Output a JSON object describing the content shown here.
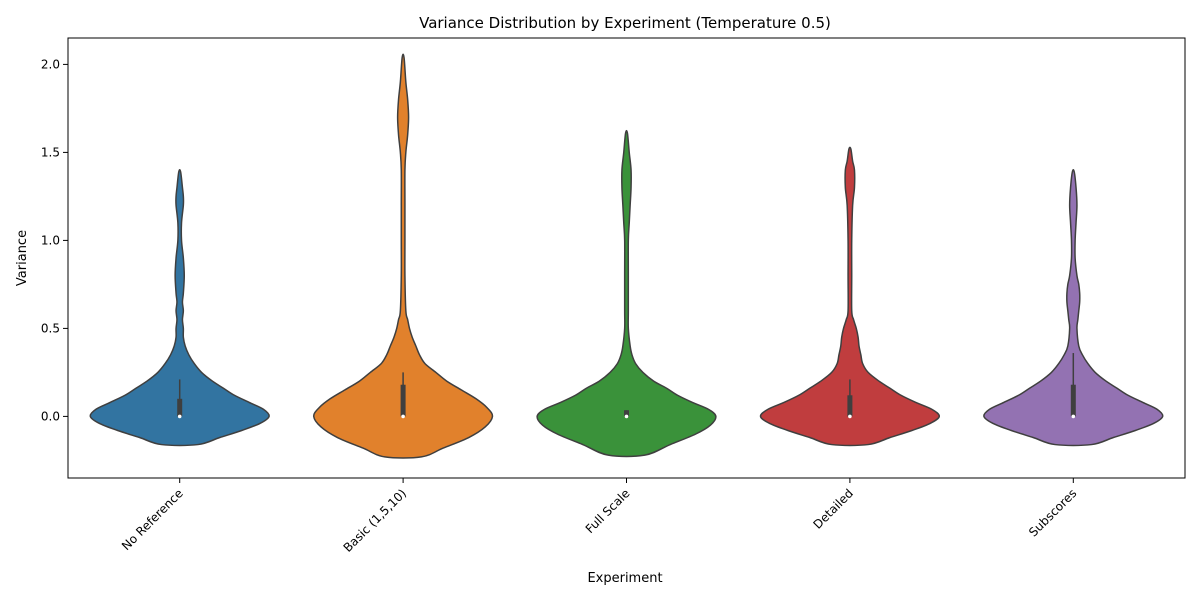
{
  "chart_data": {
    "type": "violin",
    "title": "Variance Distribution by Experiment (Temperature 0.5)",
    "xlabel": "Experiment",
    "ylabel": "Variance",
    "ylim": [
      -0.35,
      2.15
    ],
    "yticks": [
      0.0,
      0.5,
      1.0,
      1.5,
      2.0
    ],
    "ytick_labels": [
      "0.0",
      "0.5",
      "1.0",
      "1.5",
      "2.0"
    ],
    "grid": false,
    "categories": [
      "No Reference",
      "Basic (1,5,10)",
      "Full Scale",
      "Detailed",
      "Subscores"
    ],
    "violins": [
      {
        "name": "No Reference",
        "color": "#3274a1",
        "outline": [
          [
            -0.16,
            0.1
          ],
          [
            -0.12,
            0.22
          ],
          [
            -0.08,
            0.34
          ],
          [
            -0.04,
            0.44
          ],
          [
            0.0,
            0.49
          ],
          [
            0.04,
            0.46
          ],
          [
            0.08,
            0.38
          ],
          [
            0.12,
            0.3
          ],
          [
            0.16,
            0.24
          ],
          [
            0.2,
            0.18
          ],
          [
            0.25,
            0.12
          ],
          [
            0.3,
            0.08
          ],
          [
            0.35,
            0.05
          ],
          [
            0.4,
            0.03
          ],
          [
            0.45,
            0.02
          ],
          [
            0.5,
            0.02
          ],
          [
            0.55,
            0.015
          ],
          [
            0.6,
            0.02
          ],
          [
            0.65,
            0.015
          ],
          [
            0.7,
            0.02
          ],
          [
            0.8,
            0.025
          ],
          [
            0.9,
            0.02
          ],
          [
            1.0,
            0.01
          ],
          [
            1.1,
            0.01
          ],
          [
            1.2,
            0.02
          ],
          [
            1.25,
            0.02
          ],
          [
            1.3,
            0.015
          ],
          [
            1.39,
            0.005
          ]
        ],
        "box": {
          "q1": 0.0,
          "median": 0.0,
          "q3": 0.1,
          "whisker_low": 0.0,
          "whisker_high": 0.21
        }
      },
      {
        "name": "Basic (1,5,10)",
        "color": "#e1812c",
        "outline": [
          [
            -0.23,
            0.1
          ],
          [
            -0.18,
            0.22
          ],
          [
            -0.12,
            0.36
          ],
          [
            -0.06,
            0.45
          ],
          [
            0.0,
            0.49
          ],
          [
            0.05,
            0.46
          ],
          [
            0.1,
            0.4
          ],
          [
            0.15,
            0.32
          ],
          [
            0.2,
            0.24
          ],
          [
            0.25,
            0.18
          ],
          [
            0.3,
            0.12
          ],
          [
            0.35,
            0.09
          ],
          [
            0.4,
            0.07
          ],
          [
            0.45,
            0.05
          ],
          [
            0.5,
            0.035
          ],
          [
            0.55,
            0.025
          ],
          [
            0.6,
            0.015
          ],
          [
            0.8,
            0.01
          ],
          [
            1.0,
            0.01
          ],
          [
            1.2,
            0.01
          ],
          [
            1.4,
            0.01
          ],
          [
            1.5,
            0.015
          ],
          [
            1.6,
            0.025
          ],
          [
            1.7,
            0.03
          ],
          [
            1.8,
            0.025
          ],
          [
            1.9,
            0.015
          ],
          [
            2.04,
            0.005
          ]
        ],
        "box": {
          "q1": 0.0,
          "median": 0.0,
          "q3": 0.18,
          "whisker_low": 0.0,
          "whisker_high": 0.25
        }
      },
      {
        "name": "Full Scale",
        "color": "#3a923a",
        "outline": [
          [
            -0.22,
            0.1
          ],
          [
            -0.16,
            0.24
          ],
          [
            -0.1,
            0.38
          ],
          [
            -0.05,
            0.46
          ],
          [
            0.0,
            0.49
          ],
          [
            0.04,
            0.45
          ],
          [
            0.08,
            0.36
          ],
          [
            0.12,
            0.28
          ],
          [
            0.16,
            0.22
          ],
          [
            0.2,
            0.15
          ],
          [
            0.25,
            0.09
          ],
          [
            0.3,
            0.05
          ],
          [
            0.35,
            0.03
          ],
          [
            0.4,
            0.02
          ],
          [
            0.5,
            0.01
          ],
          [
            0.6,
            0.01
          ],
          [
            0.8,
            0.01
          ],
          [
            1.0,
            0.01
          ],
          [
            1.1,
            0.015
          ],
          [
            1.2,
            0.02
          ],
          [
            1.3,
            0.025
          ],
          [
            1.4,
            0.025
          ],
          [
            1.5,
            0.015
          ],
          [
            1.61,
            0.005
          ]
        ],
        "box": {
          "q1": 0.0,
          "median": 0.0,
          "q3": 0.035,
          "whisker_low": 0.0,
          "whisker_high": 0.035
        }
      },
      {
        "name": "Detailed",
        "color": "#c03d3e",
        "outline": [
          [
            -0.16,
            0.1
          ],
          [
            -0.12,
            0.22
          ],
          [
            -0.08,
            0.34
          ],
          [
            -0.04,
            0.44
          ],
          [
            0.0,
            0.49
          ],
          [
            0.04,
            0.45
          ],
          [
            0.08,
            0.36
          ],
          [
            0.12,
            0.28
          ],
          [
            0.16,
            0.22
          ],
          [
            0.2,
            0.16
          ],
          [
            0.25,
            0.1
          ],
          [
            0.3,
            0.07
          ],
          [
            0.35,
            0.06
          ],
          [
            0.4,
            0.05
          ],
          [
            0.45,
            0.045
          ],
          [
            0.5,
            0.035
          ],
          [
            0.55,
            0.02
          ],
          [
            0.6,
            0.01
          ],
          [
            0.8,
            0.01
          ],
          [
            1.0,
            0.01
          ],
          [
            1.2,
            0.015
          ],
          [
            1.3,
            0.025
          ],
          [
            1.4,
            0.025
          ],
          [
            1.45,
            0.015
          ],
          [
            1.52,
            0.005
          ]
        ],
        "box": {
          "q1": 0.0,
          "median": 0.0,
          "q3": 0.12,
          "whisker_low": 0.0,
          "whisker_high": 0.21
        }
      },
      {
        "name": "Subscores",
        "color": "#9372b2",
        "outline": [
          [
            -0.16,
            0.1
          ],
          [
            -0.12,
            0.22
          ],
          [
            -0.08,
            0.34
          ],
          [
            -0.04,
            0.44
          ],
          [
            0.0,
            0.49
          ],
          [
            0.04,
            0.46
          ],
          [
            0.08,
            0.38
          ],
          [
            0.12,
            0.3
          ],
          [
            0.16,
            0.24
          ],
          [
            0.2,
            0.18
          ],
          [
            0.25,
            0.12
          ],
          [
            0.3,
            0.08
          ],
          [
            0.35,
            0.05
          ],
          [
            0.4,
            0.03
          ],
          [
            0.5,
            0.02
          ],
          [
            0.55,
            0.025
          ],
          [
            0.6,
            0.03
          ],
          [
            0.65,
            0.035
          ],
          [
            0.7,
            0.035
          ],
          [
            0.75,
            0.03
          ],
          [
            0.8,
            0.02
          ],
          [
            0.9,
            0.01
          ],
          [
            1.0,
            0.01
          ],
          [
            1.1,
            0.015
          ],
          [
            1.2,
            0.02
          ],
          [
            1.3,
            0.015
          ],
          [
            1.39,
            0.005
          ]
        ],
        "box": {
          "q1": 0.0,
          "median": 0.0,
          "q3": 0.18,
          "whisker_low": 0.0,
          "whisker_high": 0.36
        }
      }
    ]
  }
}
